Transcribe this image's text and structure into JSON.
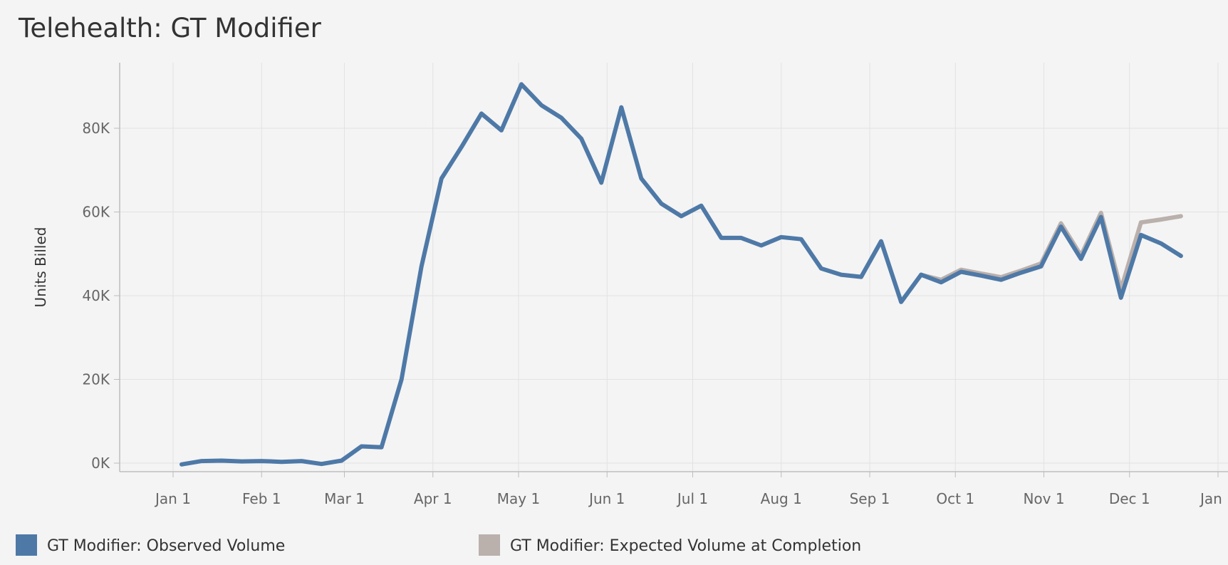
{
  "chart_data": {
    "type": "line",
    "title": "Telehealth: GT Modifier",
    "ylabel": "Units Billed",
    "xlabel": "",
    "x_tick_labels": [
      "Jan 1",
      "Feb 1",
      "Mar 1",
      "Apr 1",
      "May 1",
      "Jun 1",
      "Jul 1",
      "Aug 1",
      "Sep 1",
      "Oct 1",
      "Nov 1",
      "Dec 1",
      "Jan 1"
    ],
    "y_tick_labels": [
      "0K",
      "20K",
      "40K",
      "60K",
      "80K"
    ],
    "y_tick_values": [
      0,
      20000,
      40000,
      60000,
      80000
    ],
    "ylim": [
      -2000,
      93000
    ],
    "grid": true,
    "legend_position": "bottom",
    "series": [
      {
        "name": "GT Modifier: Observed Volume",
        "color": "#4e79a7",
        "points": [
          [
            "2020-01-04",
            -300
          ],
          [
            "2020-01-11",
            500
          ],
          [
            "2020-01-18",
            600
          ],
          [
            "2020-01-25",
            400
          ],
          [
            "2020-02-01",
            500
          ],
          [
            "2020-02-08",
            300
          ],
          [
            "2020-02-15",
            500
          ],
          [
            "2020-02-22",
            -200
          ],
          [
            "2020-02-29",
            600
          ],
          [
            "2020-03-07",
            4000
          ],
          [
            "2020-03-14",
            3800
          ],
          [
            "2020-03-21",
            20000
          ],
          [
            "2020-03-28",
            47000
          ],
          [
            "2020-04-04",
            68000
          ],
          [
            "2020-04-11",
            75500
          ],
          [
            "2020-04-18",
            83500
          ],
          [
            "2020-04-25",
            79500
          ],
          [
            "2020-05-02",
            90500
          ],
          [
            "2020-05-09",
            85500
          ],
          [
            "2020-05-16",
            82500
          ],
          [
            "2020-05-23",
            77500
          ],
          [
            "2020-05-30",
            67000
          ],
          [
            "2020-06-06",
            85000
          ],
          [
            "2020-06-13",
            68000
          ],
          [
            "2020-06-20",
            62000
          ],
          [
            "2020-06-27",
            59000
          ],
          [
            "2020-07-04",
            61500
          ],
          [
            "2020-07-11",
            53800
          ],
          [
            "2020-07-18",
            53800
          ],
          [
            "2020-07-25",
            52000
          ],
          [
            "2020-08-01",
            54000
          ],
          [
            "2020-08-08",
            53500
          ],
          [
            "2020-08-15",
            46500
          ],
          [
            "2020-08-22",
            45000
          ],
          [
            "2020-08-29",
            44500
          ],
          [
            "2020-09-05",
            53000
          ],
          [
            "2020-09-12",
            38500
          ],
          [
            "2020-09-19",
            45000
          ],
          [
            "2020-09-26",
            43200
          ],
          [
            "2020-10-03",
            45700
          ],
          [
            "2020-10-10",
            44800
          ],
          [
            "2020-10-17",
            43800
          ],
          [
            "2020-10-24",
            45500
          ],
          [
            "2020-10-31",
            47000
          ],
          [
            "2020-11-07",
            56500
          ],
          [
            "2020-11-14",
            48800
          ],
          [
            "2020-11-21",
            58800
          ],
          [
            "2020-11-28",
            39500
          ],
          [
            "2020-12-05",
            54500
          ],
          [
            "2020-12-12",
            52500
          ],
          [
            "2020-12-19",
            49500
          ]
        ]
      },
      {
        "name": "GT Modifier: Expected Volume at Completion",
        "color": "#bab0ac",
        "points": [
          [
            "2020-09-19",
            45000
          ],
          [
            "2020-09-26",
            43800
          ],
          [
            "2020-10-03",
            46200
          ],
          [
            "2020-10-10",
            45300
          ],
          [
            "2020-10-17",
            44400
          ],
          [
            "2020-10-24",
            46000
          ],
          [
            "2020-10-31",
            47700
          ],
          [
            "2020-11-07",
            57300
          ],
          [
            "2020-11-14",
            49600
          ],
          [
            "2020-11-21",
            59800
          ],
          [
            "2020-11-28",
            41500
          ],
          [
            "2020-12-05",
            57500
          ],
          [
            "2020-12-12",
            58200
          ],
          [
            "2020-12-19",
            59000
          ]
        ]
      }
    ]
  }
}
